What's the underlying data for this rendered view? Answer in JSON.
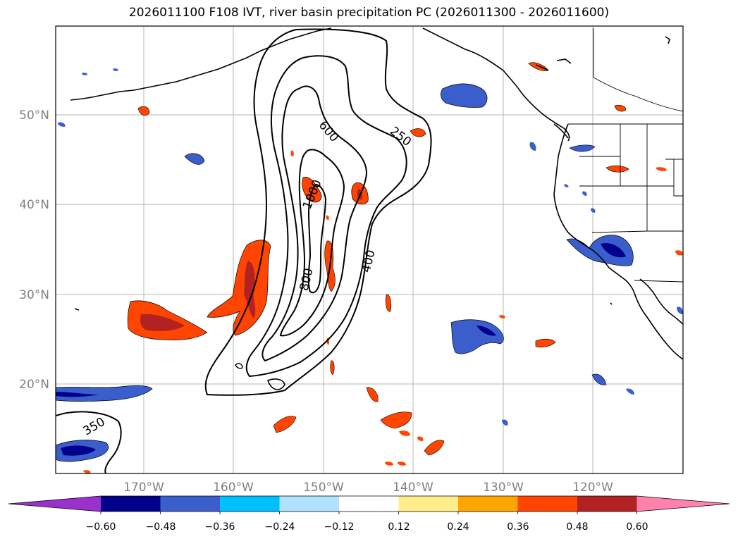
{
  "title": "2026011100 F108 IVT, river basin precipitation PC (2026011300 - 2026011600)",
  "lat_labels": [
    "50°N",
    "40°N",
    "30°N",
    "20°N"
  ],
  "lon_labels": [
    "170°W",
    "160°W",
    "150°W",
    "140°W",
    "130°W",
    "120°W"
  ],
  "contour_labels": [
    "250",
    "600",
    "1000",
    "400",
    "800",
    "350"
  ],
  "colorbar": {
    "ticks": [
      "−0.60",
      "−0.48",
      "−0.36",
      "−0.24",
      "−0.12",
      "0.12",
      "0.24",
      "0.36",
      "0.48",
      "0.60"
    ],
    "colors": [
      "#9932cc",
      "#00008b",
      "#3a5fcd",
      "#00bfff",
      "#b0e2ff",
      "#ffffff",
      "#ffec8b",
      "#ffa500",
      "#ff4500",
      "#b22222",
      "#ff82ab"
    ]
  }
}
